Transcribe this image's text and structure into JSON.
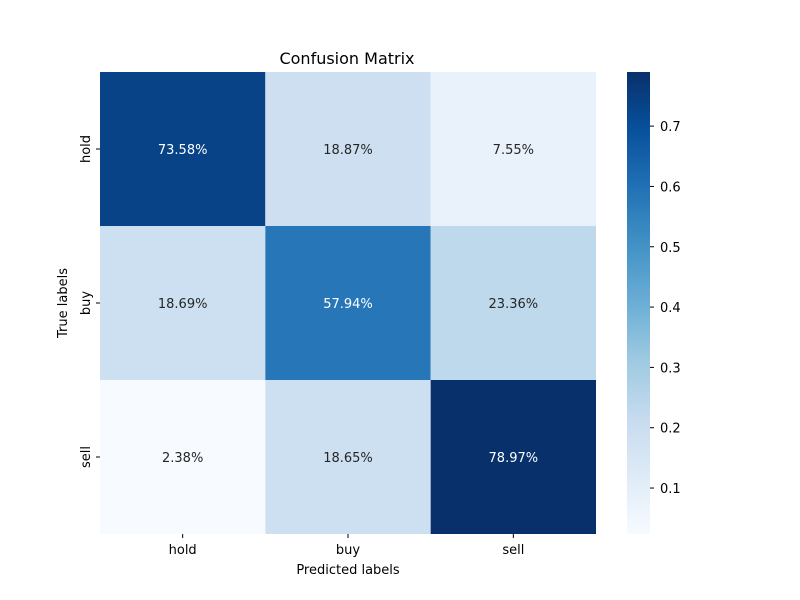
{
  "chart_data": {
    "type": "heatmap",
    "title": "Confusion Matrix",
    "xlabel": "Predicted labels",
    "ylabel": "True labels",
    "x_categories": [
      "hold",
      "buy",
      "sell"
    ],
    "y_categories": [
      "hold",
      "buy",
      "sell"
    ],
    "values": [
      [
        0.7358,
        0.1887,
        0.0755
      ],
      [
        0.1869,
        0.5794,
        0.2336
      ],
      [
        0.0238,
        0.1865,
        0.7897
      ]
    ],
    "cell_labels": [
      [
        "73.58%",
        "18.87%",
        "7.55%"
      ],
      [
        "18.69%",
        "57.94%",
        "23.36%"
      ],
      [
        "2.38%",
        "18.65%",
        "78.97%"
      ]
    ],
    "colormap": "Blues",
    "color_range": [
      0.0238,
      0.7897
    ],
    "colorbar_ticks": [
      "0.1",
      "0.2",
      "0.3",
      "0.4",
      "0.5",
      "0.6",
      "0.7"
    ],
    "colorbar_tick_values": [
      0.1,
      0.2,
      0.3,
      0.4,
      0.5,
      0.6,
      0.7
    ]
  }
}
